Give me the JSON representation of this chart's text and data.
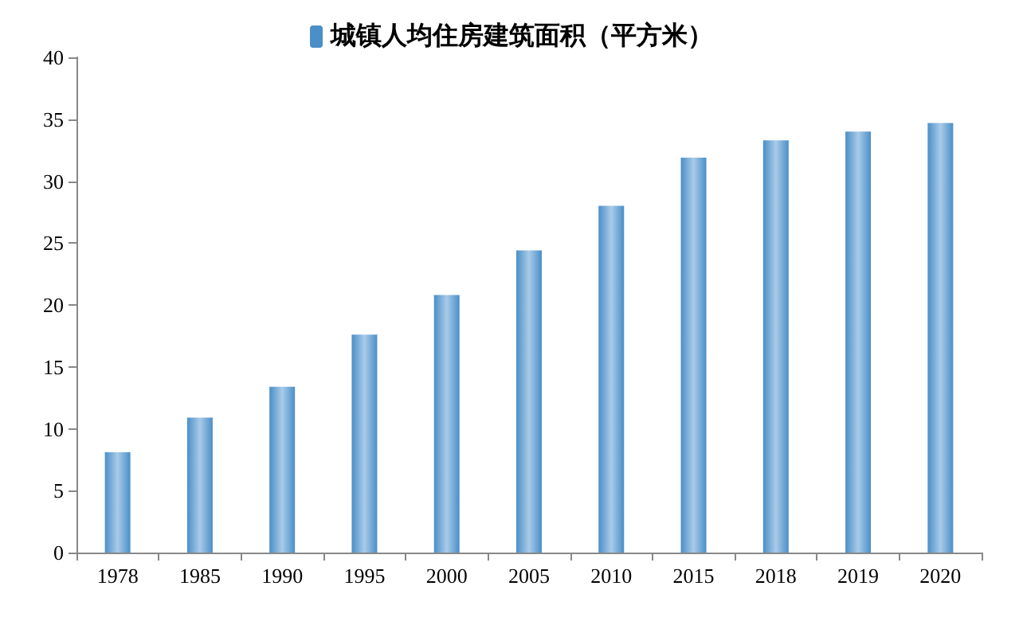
{
  "chart_data": {
    "type": "bar",
    "categories": [
      "1978",
      "1985",
      "1990",
      "1995",
      "2000",
      "2005",
      "2010",
      "2015",
      "2018",
      "2019",
      "2020"
    ],
    "series": [
      {
        "name": "城镇人均住房建筑面积（平方米）",
        "color": "#4a8fc8",
        "values": [
          8.1,
          10.9,
          13.4,
          17.6,
          20.8,
          24.4,
          28.0,
          31.9,
          33.3,
          34.0,
          34.7
        ]
      }
    ],
    "ylim": [
      0,
      40
    ],
    "yticks": [
      0,
      5,
      10,
      15,
      20,
      25,
      30,
      35,
      40
    ],
    "grid": false,
    "legend": "top"
  }
}
